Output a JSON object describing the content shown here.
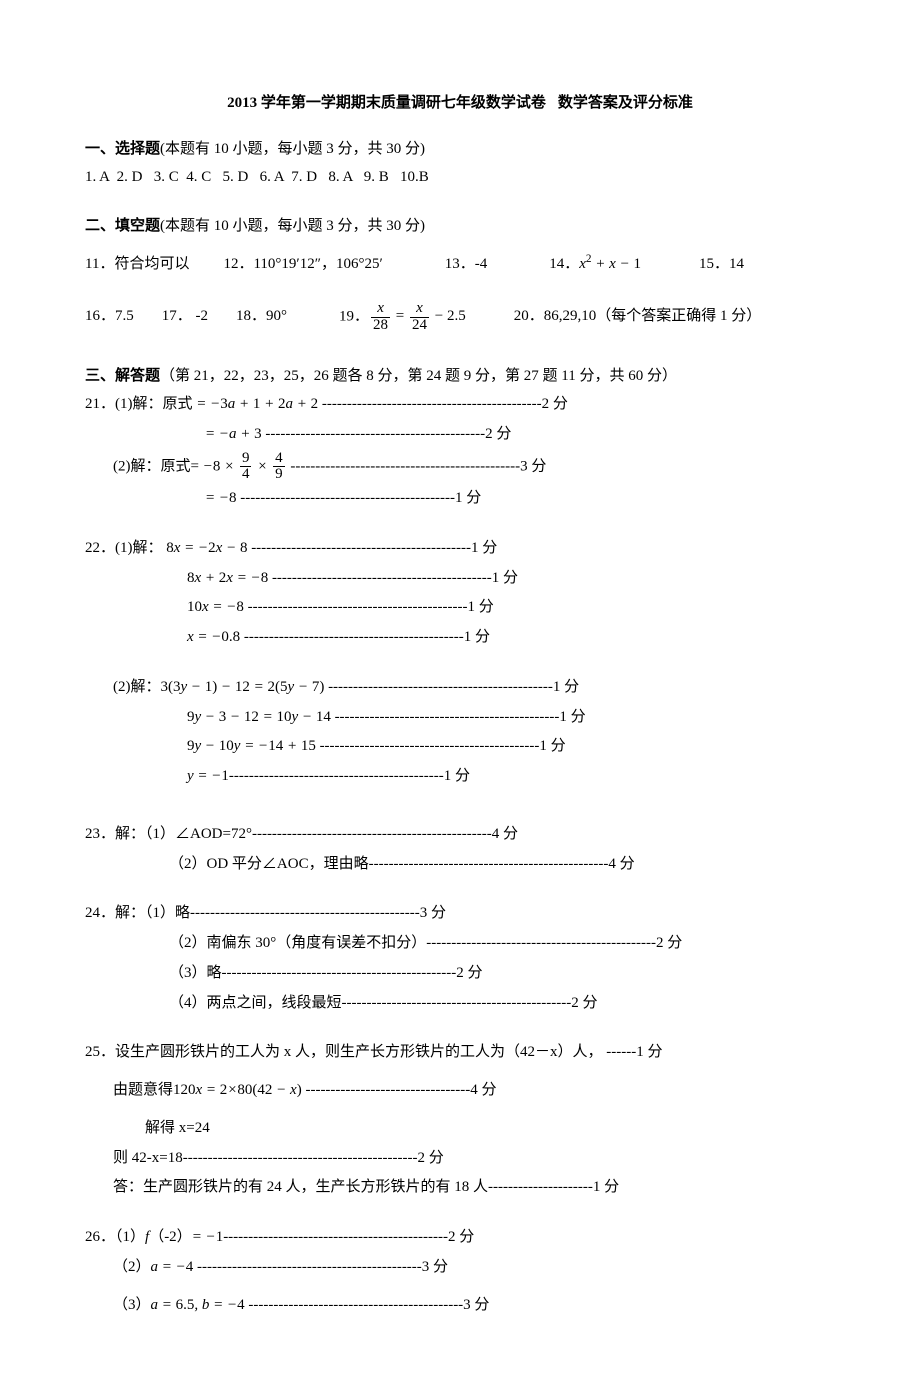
{
  "title": {
    "left": "2013 学年第一学期期末质量调研七年级数学试卷",
    "right": "数学答案及评分标准"
  },
  "sections": {
    "s1": {
      "head_bold": "一、选择题",
      "head_rest": "(本题有 10 小题，每小题 3 分，共 30 分)"
    },
    "s2": {
      "head_bold": "二、填空题",
      "head_rest": "(本题有 10 小题，每小题 3 分，共 30 分)"
    },
    "s3": {
      "head_bold": "三、解答题",
      "head_rest": "（第 21，22，23，25，26 题各 8 分，第 24 题 9 分，第 27 题 11 分，共 60 分）"
    }
  },
  "choice_line": "1. A  2. D   3. C  4. C   5. D   6. A  7. D   8. A   9. B   10.B",
  "fill": {
    "l1": {
      "a": "11．符合均可以",
      "b_pre": "12．",
      "b_dms": "110°19′12″",
      "b_post": "，106°25′",
      "c": "13．-4",
      "d_pre": "14．",
      "d_math_html": "<span class='math'>x<sup><span class='rm'>2</span></sup> + x − <span class='rm'>1</span></span>",
      "e": "15．14"
    },
    "l2": {
      "a": "16．7.5",
      "b": "17． -2",
      "c": "18．90°",
      "d_pre": "19．",
      "d_math_html": "<span class='frac'><span class='num'><span class='math'>x</span></span><span class='den'>28</span></span> = <span class='frac'><span class='num'><span class='math'>x</span></span><span class='den'>24</span></span> − 2.5",
      "e": "20．86,29,10（每个答案正确得 1 分）"
    }
  },
  "q21": {
    "p1a_html": "21．(1)解：原式 <span class='math'>= −<span class='rm'>3</span>a + <span class='rm'>1</span> + <span class='rm'>2</span>a + <span class='rm'>2</span></span> --------------------------------------------2 分",
    "p1b_html": "<span class='math'>= −a + <span class='rm'>3</span></span> --------------------------------------------2 分",
    "p2a_html": "(2)解：原式= <span class='math'>−<span class='rm'>8</span> × </span><span class='frac'><span class='num'>9</span><span class='den'>4</span></span><span class='math'> × </span><span class='frac'><span class='num'>4</span><span class='den'>9</span></span> ----------------------------------------------3 分",
    "p2b_html": "<span class='math'>= −<span class='rm'>8</span></span> -------------------------------------------1 分"
  },
  "q22": {
    "p1a_html": "22．(1)解： <span class='math'><span class='rm'>8</span>x = −<span class='rm'>2</span>x − <span class='rm'>8</span></span> --------------------------------------------1 分",
    "p1b_html": "<span class='math'><span class='rm'>8</span>x + <span class='rm'>2</span>x = −<span class='rm'>8</span></span> --------------------------------------------1 分",
    "p1c_html": "<span class='math'><span class='rm'>10</span>x = −<span class='rm'>8</span></span> --------------------------------------------1 分",
    "p1d_html": "<span class='math'>x = −<span class='rm'>0.8</span></span> --------------------------------------------1 分",
    "p2a_html": "(2)解：<span class='math'><span class='rm'>3(3</span>y − <span class='rm'>1)</span> − <span class='rm'>12</span> = <span class='rm'>2(5</span>y − <span class='rm'>7)</span></span> ---------------------------------------------1 分",
    "p2b_html": "<span class='math'><span class='rm'>9</span>y − <span class='rm'>3</span> − <span class='rm'>12</span> = <span class='rm'>10</span>y − <span class='rm'>14</span></span> ---------------------------------------------1 分",
    "p2c_html": "<span class='math'><span class='rm'>9</span>y − <span class='rm'>10</span>y = −<span class='rm'>14</span> + <span class='rm'>15</span></span> --------------------------------------------1 分",
    "p2d_html": "<span class='math'>y = −<span class='rm'>1</span></span>-------------------------------------------1 分"
  },
  "q23": {
    "a": "23．解：（1）∠AOD=72°------------------------------------------------4 分",
    "b": "（2）OD 平分∠AOC，理由略------------------------------------------------4 分"
  },
  "q24": {
    "a": "24．解：（1）略----------------------------------------------3 分",
    "b": "（2）南偏东 30°（角度有误差不扣分）----------------------------------------------2 分",
    "c": "（3）略-----------------------------------------------2 分",
    "d": "（4）两点之间，线段最短----------------------------------------------2 分"
  },
  "q25": {
    "a": "25．设生产圆形铁片的工人为 x 人，则生产长方形铁片的工人为（42－x）人， ------1 分",
    "b_html": "由题意得<span class='math'><span class='rm'>120</span>x = <span class='rm'>2</span>×<span class='rm'>80(42</span> − x<span class='rm'>)</span></span> ---------------------------------4 分",
    "c": "解得 x=24",
    "d": "则 42-x=18-----------------------------------------------2 分",
    "e": "答：生产圆形铁片的有 24 人，生产长方形铁片的有 18 人---------------------1 分"
  },
  "q26": {
    "a_html": "26．（1）<span class='math'>f</span>（-2）<span class='math'>= −<span class='rm'>1</span></span>---------------------------------------------2 分",
    "b_html": "（2）<span class='math'>a = −<span class='rm'>4</span></span> ---------------------------------------------3 分",
    "c_html": "（3）<span class='math'>a = <span class='rm'>6.5</span>, b = −<span class='rm'>4</span></span> -------------------------------------------3 分"
  }
}
